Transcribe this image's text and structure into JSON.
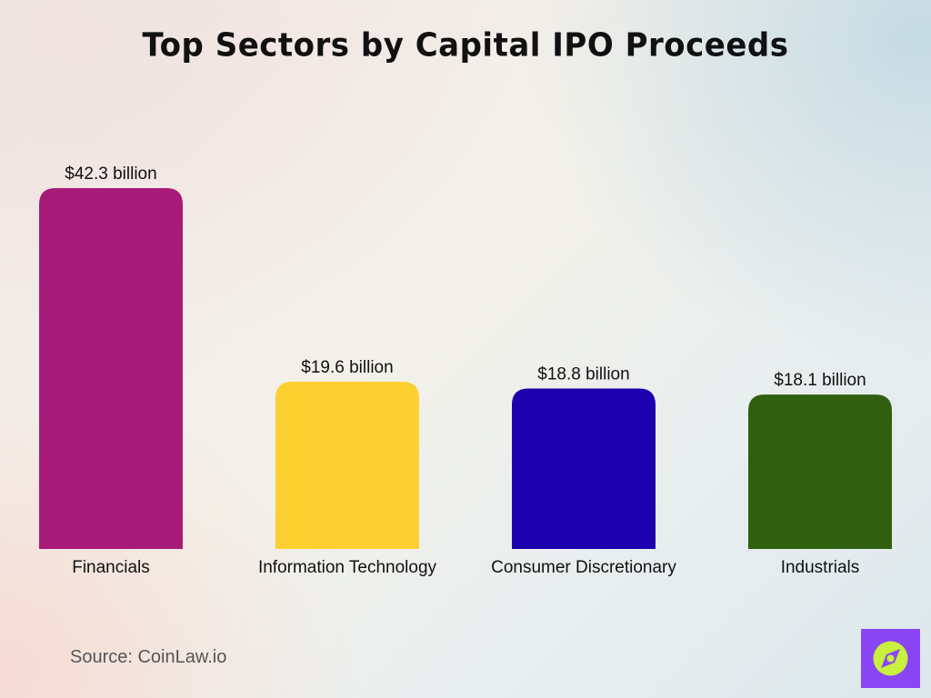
{
  "chart_data": {
    "type": "bar",
    "title": "Top Sectors by Capital IPO Proceeds",
    "categories": [
      "Financials",
      "Information Technology",
      "Consumer Discretionary",
      "Industrials"
    ],
    "values": [
      42.3,
      19.6,
      18.8,
      18.1
    ],
    "value_labels": [
      "$42.3 billion",
      "$19.6 billion",
      "$18.8 billion",
      "$18.1 billion"
    ],
    "colors": [
      "#a71b78",
      "#fdd031",
      "#1c00ae",
      "#2f5f0f"
    ],
    "xlabel": "",
    "ylabel": "",
    "ylim": [
      0,
      42.3
    ],
    "grid": false,
    "legend": "none"
  },
  "source": "Source: CoinLaw.io",
  "logo": {
    "icon": "compass-icon",
    "background": "#8a45f5",
    "accent": "#c8f03c"
  }
}
